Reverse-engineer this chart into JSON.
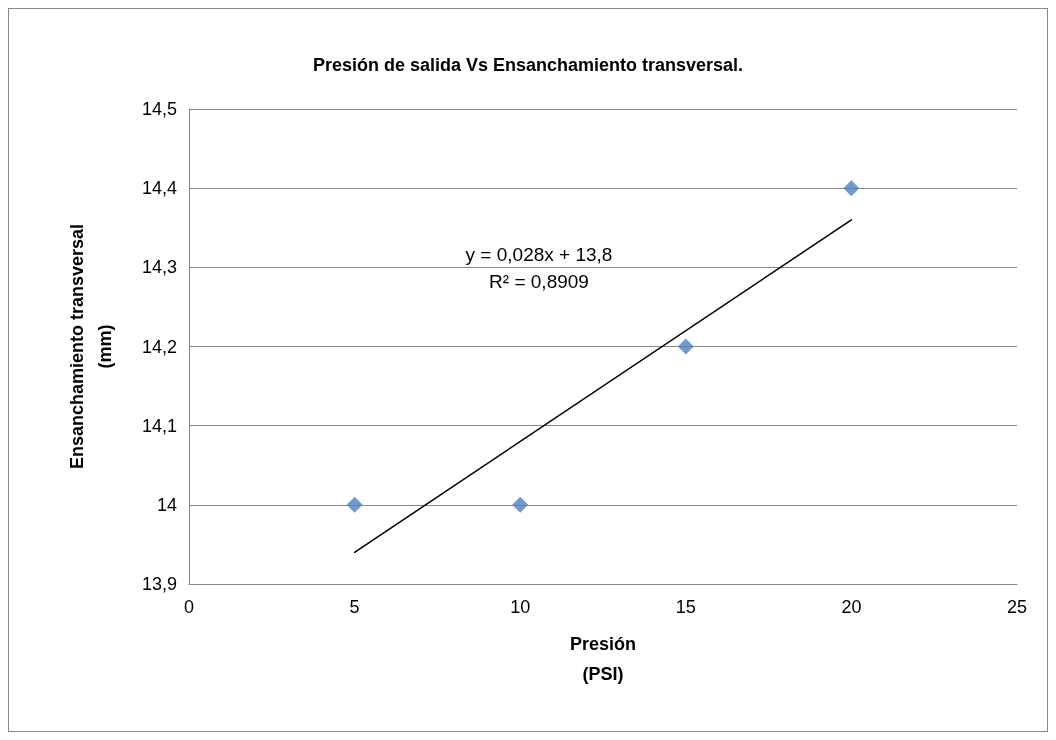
{
  "chart_data": {
    "type": "scatter",
    "title": "Presión de salida Vs Ensanchamiento transversal.",
    "xlabel": "Presión\n(PSI)",
    "ylabel": "Ensanchamiento transversal\n(mm)",
    "annotations": [
      "y = 0,028x + 13,8",
      "R² = 0,8909"
    ],
    "series": [
      {
        "color": "#4f81bd",
        "marker": "diamond",
        "x": [
          5,
          10,
          15,
          20
        ],
        "values": [
          14,
          14,
          14.2,
          14.4
        ]
      },
      {
        "type": "line",
        "color": "#000000",
        "marker": "none",
        "line_style": "solid",
        "x": [
          5,
          20
        ],
        "values": [
          13.94,
          14.36
        ]
      }
    ],
    "xlim": [
      0,
      25
    ],
    "xticks": [
      0,
      5,
      10,
      15,
      20,
      25
    ],
    "ylim": [
      13.9,
      14.5
    ],
    "yticks": [
      {
        "value": 13.9,
        "label": "13,9"
      },
      {
        "value": 14,
        "label": "14"
      },
      {
        "value": 14.1,
        "label": "14,1"
      },
      {
        "value": 14.2,
        "label": "14,2"
      },
      {
        "value": 14.3,
        "label": "14,3"
      },
      {
        "value": 14.4,
        "label": "14,4"
      },
      {
        "value": 14.5,
        "label": "14,5"
      }
    ],
    "grid": "y"
  }
}
